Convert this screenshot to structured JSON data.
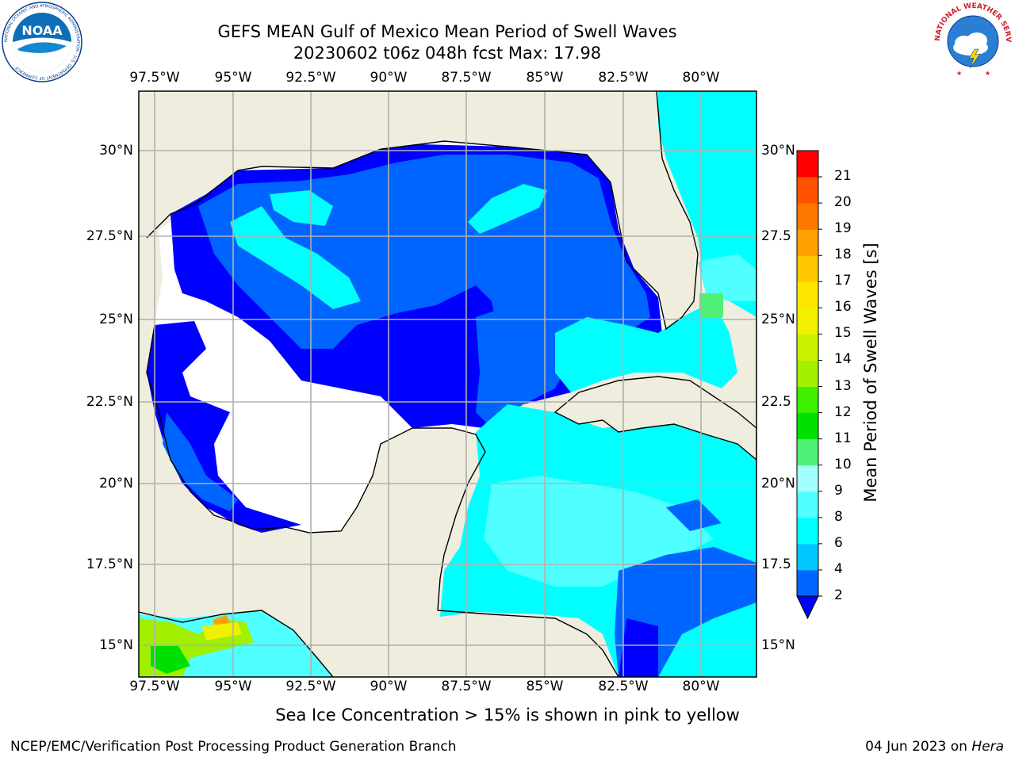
{
  "title": {
    "line1": "GEFS MEAN Gulf of Mexico Mean Period of Swell Waves",
    "line2": "20230602 t06z 048h fcst   Max: 17.98"
  },
  "logos": {
    "left": "NOAA",
    "left_ring_text": "NATIONAL OCEANIC AND ATMOSPHERIC ADMINISTRATION · U.S. DEPARTMENT OF COMMERCE",
    "right_ring_text": "NATIONAL WEATHER SERVICE"
  },
  "map": {
    "lon_labels_top": [
      "97.5°W",
      "95°W",
      "92.5°W",
      "90°W",
      "87.5°W",
      "85°W",
      "82.5°W",
      "80°W"
    ],
    "lon_labels_bottom": [
      "97.5°W",
      "95°W",
      "92.5°W",
      "90°W",
      "87.5°W",
      "85°W",
      "82.5°W",
      "80°W"
    ],
    "lat_labels_left": [
      "30°N",
      "27.5°N",
      "25°N",
      "22.5°N",
      "20°N",
      "17.5°N",
      "15°N"
    ],
    "lat_labels_right": [
      "30°N",
      "27.5",
      "25°N",
      "22.5",
      "20°N",
      "17.5",
      "15°N"
    ],
    "colors": {
      "land": "#efedde",
      "ocean_missing": "#ffffff",
      "grid": "#b0b0b0"
    }
  },
  "colorbar": {
    "label": "Mean Period of Swell Waves [s]",
    "ticks": [
      "2",
      "4",
      "6",
      "8",
      "9",
      "10",
      "11",
      "12",
      "13",
      "14",
      "15",
      "16",
      "17",
      "18",
      "19",
      "20",
      "21"
    ],
    "colors": [
      "#0064ff",
      "#00c8ff",
      "#00ffff",
      "#50ffff",
      "#a0ffff",
      "#50f078",
      "#00e000",
      "#3cf000",
      "#a0f000",
      "#c8f000",
      "#f0f000",
      "#ffe600",
      "#ffc800",
      "#ffa000",
      "#ff7800",
      "#ff5000",
      "#ff0000"
    ],
    "under_color": "#0000ff"
  },
  "footer": {
    "note": "Sea Ice Concentration > 15% is shown in pink to yellow",
    "left": "NCEP/EMC/Verification Post Processing Product Generation Branch",
    "date": "04 Jun 2023 on ",
    "machine": "Hera"
  }
}
